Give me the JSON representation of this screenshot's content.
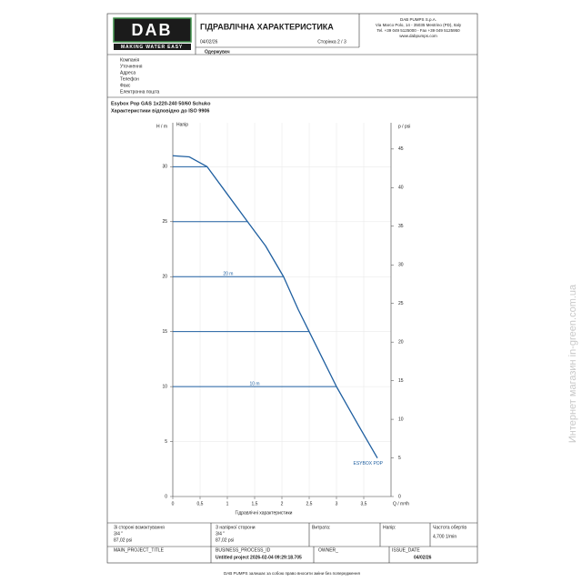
{
  "header": {
    "logo": "DAB",
    "tagline": "MAKING WATER EASY",
    "title": "ГІДРАВЛІЧНА ХАРАКТЕРИСТИКА",
    "date": "04/02/26",
    "page": "Сторінка 2 / 3",
    "company": [
      "DAB PUMPS S.p.A.",
      "Via Marco Polo, 14 - 35035 Mestrino (PD), Italy",
      "Tel. +39 049 5125000 - Fax +39 049 5125950",
      "www.dabpumps.com"
    ]
  },
  "recipient": "Одержувач",
  "contact_fields": [
    "Компанія",
    "Уточнення",
    "Адреса",
    "Телефон",
    "Факс",
    "Електронна пошта"
  ],
  "product": "Esybox Pop GAS 1x220-240 50/60 Schuko",
  "standard": "Характеристики відповідно до ISO 9906",
  "chart_data": {
    "type": "line",
    "y_label": "H / m",
    "y2_label": "p / psi",
    "x_label": "Q / m³/h",
    "caption": "Гідравлічні характеристики",
    "x": [
      0,
      0.3,
      0.63,
      1.0,
      1.37,
      1.7,
      2.03,
      2.3,
      2.5,
      2.75,
      3.0,
      3.4,
      3.75
    ],
    "series": [
      {
        "name": "Напір",
        "color": "#1f5fa0",
        "values": [
          31,
          30.9,
          30,
          27.5,
          25,
          22.8,
          20,
          17,
          15,
          12.5,
          10,
          6.5,
          3.5
        ]
      }
    ],
    "curve_label": "ESYBOX POP",
    "xlim": [
      0,
      4
    ],
    "ylim": [
      0,
      34
    ],
    "y2lim": [
      0,
      48.4
    ],
    "xticks": [
      0,
      {
        "value": 0.5,
        "label": "0,5"
      },
      1,
      {
        "value": 1.5,
        "label": "1,5"
      },
      2,
      {
        "value": 2.5,
        "label": "2,5"
      },
      3,
      {
        "value": 3.5,
        "label": "3,5"
      }
    ],
    "yticks": [
      0,
      5,
      10,
      15,
      20,
      25,
      30
    ],
    "y2ticks": [
      0,
      5,
      10,
      15,
      20,
      25,
      30,
      35,
      40,
      45
    ],
    "grid": true,
    "reference_lines": [
      {
        "y": 30,
        "x": 0.63
      },
      {
        "y": 25,
        "x": 1.37
      },
      {
        "y": 20,
        "x": 2.03,
        "label": "20 m"
      },
      {
        "y": 15,
        "x": 2.5
      },
      {
        "y": 10,
        "x": 3.0,
        "label": "10 m"
      }
    ]
  },
  "specs": [
    {
      "label": "Зі стороні всмоктування",
      "size": "3/4 \"",
      "pressure": "87,02 psi"
    },
    {
      "label": "З напірної сторони",
      "size": "3/4 \"",
      "pressure": "87,02 psi"
    },
    {
      "label": "Витрата:"
    },
    {
      "label": "Напір:"
    },
    {
      "label": "Частота обертів",
      "value": "4,700 1/min"
    }
  ],
  "project": [
    {
      "label": "MAIN_PROJECT_TITLE"
    },
    {
      "label": "BUSINESS_PROCESS_ID",
      "value": "Untitled project 2026-02-04 09:29:18.705"
    },
    {
      "label": "OWNER_"
    },
    {
      "label": "ISSUE_DATE",
      "value": "04/02/26"
    }
  ],
  "footer": "DAB PUMPS залишає за собою право вносити зміни без попередження",
  "watermark": "Интернет магазин in-green.com.ua"
}
